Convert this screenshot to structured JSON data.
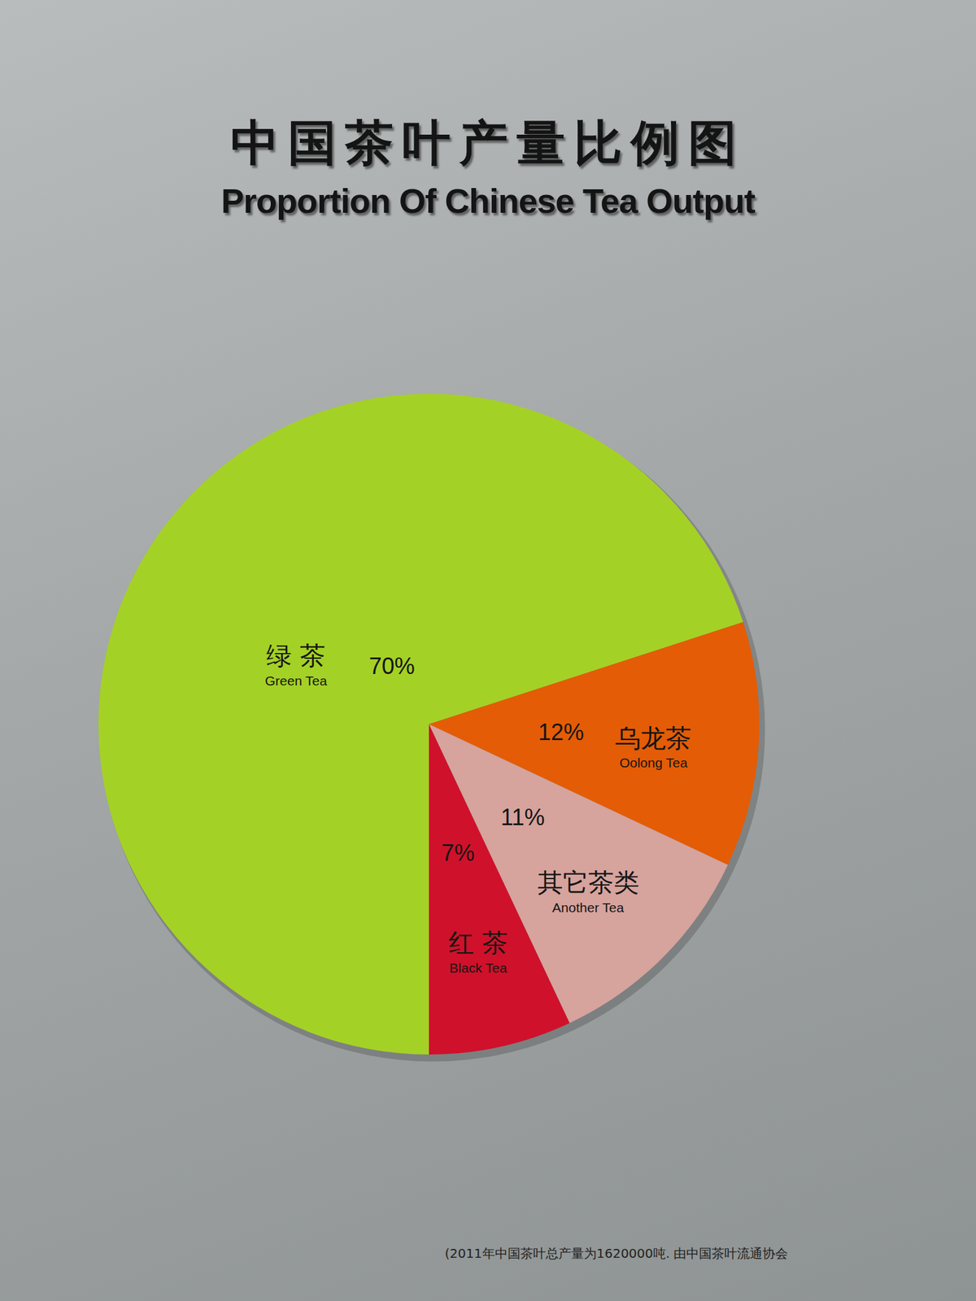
{
  "chart_data": {
    "type": "pie",
    "title": "中国茶叶产量比例图",
    "subtitle": "Proportion Of Chinese Tea Output",
    "categories": [
      "Green Tea",
      "Oolong Tea",
      "Another Tea",
      "Black Tea"
    ],
    "categories_zh": [
      "绿 茶",
      "乌龙茶",
      "其它茶类",
      "红 茶"
    ],
    "values": [
      70,
      12,
      11,
      7
    ],
    "value_labels": [
      "70%",
      "12%",
      "11%",
      "7%"
    ],
    "colors": [
      "#a4d126",
      "#e45c05",
      "#d6a39d",
      "#d0112b"
    ],
    "data_labels": true,
    "caption": "(2011年中国茶叶总产量为1620000吨. 由中国茶叶流通协会"
  }
}
